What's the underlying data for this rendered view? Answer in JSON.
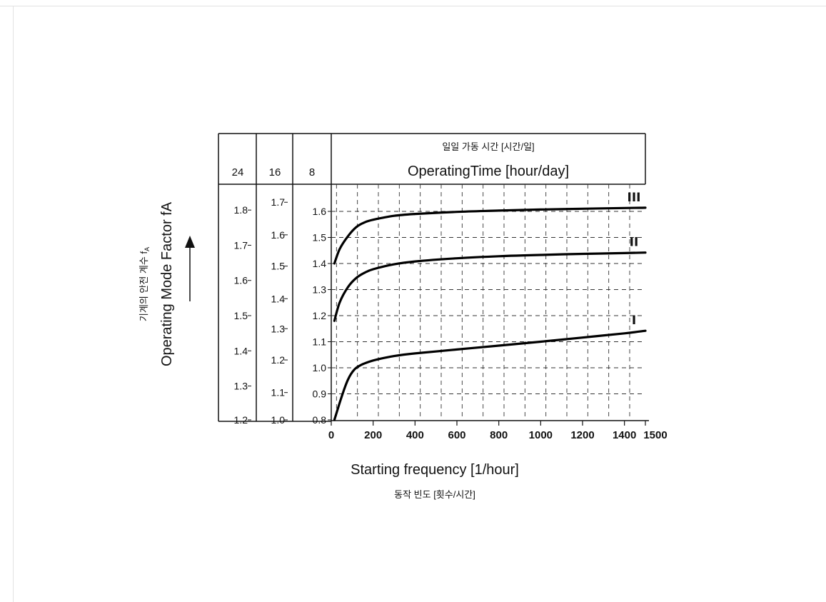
{
  "chart_data": {
    "type": "line",
    "title_korean": "일일 가동 시간 [시간/일]",
    "title": "OperatingTime [hour/day]",
    "operating_time_columns": [
      "24",
      "16",
      "8"
    ],
    "xlabel": "Starting frequency [1/hour]",
    "xlabel_korean": "동작 빈도 [횟수/시간]",
    "ylabel": "Operating Mode Factor fA",
    "ylabel_korean": "기계의 안전 계수 f",
    "ylabel_korean_subscript": "A",
    "xlim": [
      0,
      1500
    ],
    "ylim": [
      0.8,
      1.65
    ],
    "x_ticks": [
      "0",
      "200",
      "400",
      "600",
      "800",
      "1000",
      "1200",
      "1400",
      "1500"
    ],
    "x_tick_values": [
      0,
      200,
      400,
      600,
      800,
      1000,
      1200,
      1400,
      1500
    ],
    "scale_8h": {
      "values": [
        0.8,
        0.9,
        1.0,
        1.1,
        1.2,
        1.3,
        1.4,
        1.5,
        1.6
      ],
      "labels": [
        "0.8",
        "0.9",
        "1.0",
        "1.1",
        "1.2",
        "1.3",
        "1.4",
        "1.5",
        "1.6"
      ]
    },
    "scale_16h": {
      "values": [
        1.0,
        1.1,
        1.2,
        1.3,
        1.4,
        1.5,
        1.6,
        1.7
      ],
      "labels": [
        "1.0",
        "1.1",
        "1.2",
        "1.3",
        "1.4",
        "1.5",
        "1.6",
        "1.7"
      ],
      "y_on_8h_scale": [
        0.8,
        0.905,
        1.03,
        1.15,
        1.265,
        1.39,
        1.51,
        1.635
      ]
    },
    "scale_24h": {
      "values": [
        1.2,
        1.3,
        1.4,
        1.5,
        1.6,
        1.7,
        1.8
      ],
      "labels": [
        "1.2",
        "1.3",
        "1.4",
        "1.5",
        "1.6",
        "1.7",
        "1.8"
      ],
      "y_on_8h_scale": [
        0.8,
        0.93,
        1.065,
        1.2,
        1.335,
        1.47,
        1.605
      ]
    },
    "series": [
      {
        "name": "III",
        "x": [
          15,
          40,
          80,
          120,
          160,
          200,
          300,
          400,
          600,
          800,
          1000,
          1200,
          1400,
          1500
        ],
        "y": [
          1.4,
          1.455,
          1.505,
          1.54,
          1.558,
          1.568,
          1.583,
          1.59,
          1.598,
          1.603,
          1.607,
          1.61,
          1.613,
          1.614
        ]
      },
      {
        "name": "II",
        "x": [
          15,
          40,
          80,
          120,
          160,
          200,
          300,
          400,
          600,
          800,
          1000,
          1200,
          1400,
          1500
        ],
        "y": [
          1.18,
          1.25,
          1.31,
          1.345,
          1.365,
          1.378,
          1.397,
          1.408,
          1.42,
          1.428,
          1.433,
          1.437,
          1.44,
          1.442
        ]
      },
      {
        "name": "I",
        "x": [
          15,
          50,
          80,
          110,
          140,
          180,
          220,
          300,
          400,
          600,
          800,
          1000,
          1200,
          1400,
          1500
        ],
        "y": [
          0.8,
          0.89,
          0.955,
          0.993,
          1.01,
          1.023,
          1.032,
          1.045,
          1.055,
          1.07,
          1.085,
          1.1,
          1.116,
          1.132,
          1.142
        ]
      }
    ],
    "grid": "dashed"
  }
}
